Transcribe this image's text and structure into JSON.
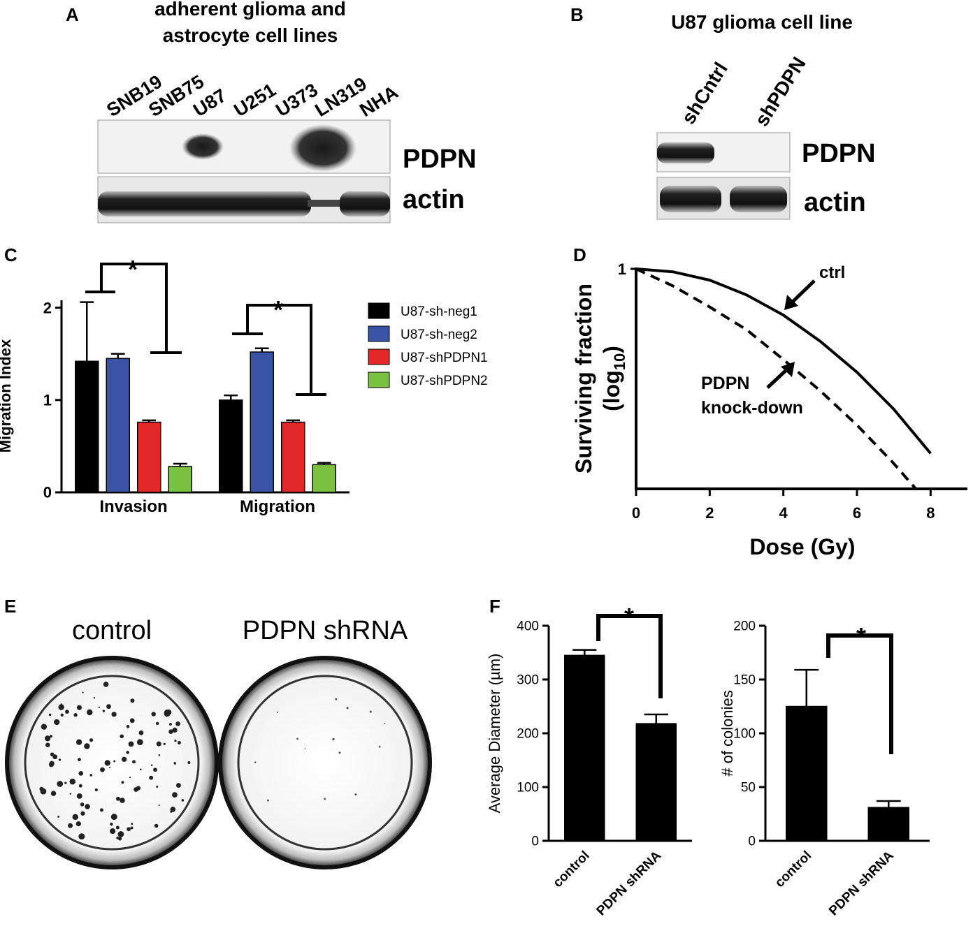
{
  "panel_labels": [
    "A",
    "B",
    "C",
    "D",
    "E",
    "F"
  ],
  "blot_a": {
    "title": [
      "adherent glioma and",
      "astrocyte cell lines"
    ],
    "lanes": [
      "SNB19",
      "SNB75",
      "U87",
      "U251",
      "U373",
      "LN319",
      "NHA"
    ],
    "bands": [
      "PDPN",
      "actin"
    ]
  },
  "blot_b": {
    "title": "U87 glioma cell line",
    "lanes": [
      "shCntrl",
      "shPDPN"
    ],
    "bands": [
      "PDPN",
      "actin"
    ]
  },
  "colony_images": {
    "labels": [
      "control",
      "PDPN shRNA"
    ]
  },
  "chart_data": [
    {
      "type": "bar",
      "y_label": "Migration Index",
      "categories": [
        "Invasion",
        "Migration"
      ],
      "series": [
        {
          "name": "U87-sh-neg1",
          "color": "#000000",
          "values": [
            1.42,
            1.0
          ],
          "errors": [
            0.64,
            0.05
          ]
        },
        {
          "name": "U87-sh-neg2",
          "color": "#3a53a4",
          "values": [
            1.45,
            1.52
          ],
          "errors": [
            0.05,
            0.04
          ]
        },
        {
          "name": "U87-shPDPN1",
          "color": "#e3282a",
          "values": [
            0.76,
            0.76
          ],
          "errors": [
            0.02,
            0.02
          ]
        },
        {
          "name": "U87-shPDPN2",
          "color": "#7cc242",
          "values": [
            0.28,
            0.3
          ],
          "errors": [
            0.03,
            0.02
          ]
        }
      ],
      "ylim": [
        0,
        2.08
      ],
      "yticks": [
        0,
        1,
        2
      ],
      "annotations": [
        "*",
        "*"
      ]
    },
    {
      "type": "line",
      "x_label": "Dose (Gy)",
      "y_label": "Surviving fraction",
      "y_label_unit": [
        "(log",
        "10",
        ")"
      ],
      "log_scale_y": true,
      "xlim": [
        0,
        9
      ],
      "xticks": [
        0,
        2,
        4,
        6,
        8
      ],
      "ylim": [
        0.01,
        1
      ],
      "yticks": [
        1
      ],
      "series": [
        {
          "color": "#000000",
          "style": "solid",
          "x": [
            0,
            1,
            2,
            3,
            4,
            5,
            6,
            7,
            8
          ],
          "values": [
            1,
            0.94,
            0.79,
            0.58,
            0.38,
            0.22,
            0.115,
            0.053,
            0.021
          ]
        },
        {
          "color": "#000000",
          "style": "dashed",
          "x": [
            0,
            1,
            2,
            3,
            4,
            5,
            6,
            7,
            7.6
          ],
          "values": [
            1,
            0.7,
            0.45,
            0.28,
            0.15,
            0.078,
            0.038,
            0.017,
            0.01
          ]
        }
      ],
      "annotations": [
        "ctrl",
        "PDPN",
        "knock-down"
      ]
    },
    {
      "type": "bar",
      "y_label": "Average Diameter (µm)",
      "categories": [
        "control",
        "PDPN shRNA"
      ],
      "values": [
        345,
        218
      ],
      "errors": [
        10,
        17
      ],
      "color": "#000000",
      "ylim": [
        0,
        400
      ],
      "yticks": [
        0,
        100,
        200,
        300,
        400
      ],
      "annotations": [
        "*"
      ]
    },
    {
      "type": "bar",
      "y_label": "# of colonies",
      "categories": [
        "control",
        "PDPN shRNA"
      ],
      "values": [
        125,
        31
      ],
      "errors": [
        34,
        6
      ],
      "color": "#000000",
      "ylim": [
        0,
        200
      ],
      "yticks": [
        0,
        50,
        100,
        150,
        200
      ],
      "annotations": [
        "*"
      ]
    }
  ]
}
